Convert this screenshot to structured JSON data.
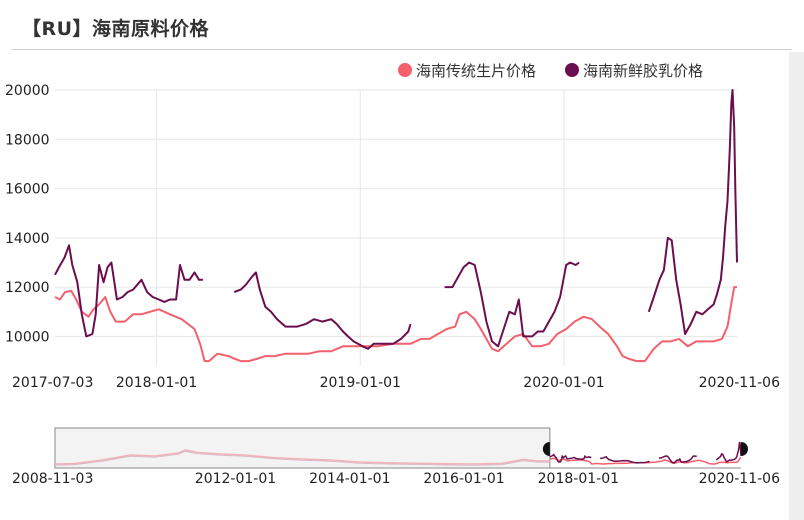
{
  "title": "【RU】海南原料价格",
  "colors": {
    "series_traditional": "#f4606c",
    "series_latex": "#6b0e4f",
    "grid": "#e6e6e6",
    "navigator_border": "#888888",
    "navigator_handle": "#111111"
  },
  "chart_data": {
    "type": "line",
    "xaxis_type": "date",
    "xlim": [
      "2017-07-03",
      "2020-11-06"
    ],
    "ylim": [
      8800,
      20000
    ],
    "y_ticks": [
      10000,
      12000,
      14000,
      16000,
      18000,
      20000
    ],
    "x_tick_labels": [
      "2017-07-03",
      "2018-01-01",
      "2019-01-01",
      "2020-01-01",
      "2020-11-06"
    ],
    "grid": true,
    "legend_position": "top-right",
    "series": [
      {
        "name": "海南传统生片价格",
        "color": "#f4606c",
        "points": [
          [
            "2017-07-03",
            11600
          ],
          [
            "2017-07-12",
            11500
          ],
          [
            "2017-07-21",
            11800
          ],
          [
            "2017-08-01",
            11850
          ],
          [
            "2017-08-10",
            11500
          ],
          [
            "2017-08-20",
            11000
          ],
          [
            "2017-09-01",
            10800
          ],
          [
            "2017-09-10",
            11100
          ],
          [
            "2017-09-20",
            11300
          ],
          [
            "2017-10-01",
            11600
          ],
          [
            "2017-10-10",
            11000
          ],
          [
            "2017-10-20",
            10600
          ],
          [
            "2017-11-05",
            10600
          ],
          [
            "2017-11-20",
            10900
          ],
          [
            "2017-12-05",
            10900
          ],
          [
            "2017-12-20",
            11000
          ],
          [
            "2018-01-05",
            11100
          ],
          [
            "2018-01-25",
            10900
          ],
          [
            "2018-02-15",
            10700
          ],
          [
            "2018-03-10",
            10300
          ],
          [
            "2018-03-20",
            9700
          ],
          [
            "2018-03-28",
            9000
          ],
          [
            "2018-04-05",
            9000
          ],
          [
            "2018-04-20",
            9300
          ],
          [
            "2018-05-10",
            9200
          ],
          [
            "2018-05-20",
            9100
          ],
          [
            "2018-06-01",
            9000
          ],
          [
            "2018-06-15",
            9000
          ],
          [
            "2018-07-01",
            9100
          ],
          [
            "2018-07-15",
            9200
          ],
          [
            "2018-08-01",
            9200
          ],
          [
            "2018-08-20",
            9300
          ],
          [
            "2018-09-10",
            9300
          ],
          [
            "2018-10-01",
            9300
          ],
          [
            "2018-10-20",
            9400
          ],
          [
            "2018-11-10",
            9400
          ],
          [
            "2018-12-01",
            9600
          ],
          [
            "2018-12-20",
            9600
          ],
          [
            "2019-01-10",
            9600
          ],
          [
            "2019-02-01",
            9600
          ],
          [
            "2019-03-01",
            9700
          ],
          [
            "2019-04-01",
            9700
          ],
          [
            "2019-04-20",
            9900
          ],
          [
            "2019-05-05",
            9900
          ],
          [
            "2019-05-20",
            10100
          ],
          [
            "2019-06-05",
            10300
          ],
          [
            "2019-06-20",
            10400
          ],
          [
            "2019-06-28",
            10900
          ],
          [
            "2019-07-10",
            11000
          ],
          [
            "2019-07-25",
            10700
          ],
          [
            "2019-08-05",
            10300
          ],
          [
            "2019-08-15",
            9900
          ],
          [
            "2019-08-25",
            9500
          ],
          [
            "2019-09-05",
            9400
          ],
          [
            "2019-09-20",
            9700
          ],
          [
            "2019-10-05",
            10000
          ],
          [
            "2019-10-20",
            10100
          ],
          [
            "2019-11-05",
            9600
          ],
          [
            "2019-11-20",
            9600
          ],
          [
            "2019-12-05",
            9700
          ],
          [
            "2019-12-20",
            10100
          ],
          [
            "2020-01-05",
            10300
          ],
          [
            "2020-01-20",
            10600
          ],
          [
            "2020-02-05",
            10800
          ],
          [
            "2020-02-20",
            10700
          ],
          [
            "2020-03-05",
            10400
          ],
          [
            "2020-03-20",
            10100
          ],
          [
            "2020-04-05",
            9600
          ],
          [
            "2020-04-15",
            9200
          ],
          [
            "2020-04-25",
            9100
          ],
          [
            "2020-05-10",
            9000
          ],
          [
            "2020-05-25",
            9000
          ],
          [
            "2020-06-10",
            9500
          ],
          [
            "2020-06-25",
            9800
          ],
          [
            "2020-07-10",
            9800
          ],
          [
            "2020-07-25",
            9900
          ],
          [
            "2020-08-10",
            9600
          ],
          [
            "2020-08-25",
            9800
          ],
          [
            "2020-09-10",
            9800
          ],
          [
            "2020-09-25",
            9800
          ],
          [
            "2020-10-10",
            9900
          ],
          [
            "2020-10-20",
            10400
          ],
          [
            "2020-10-28",
            11500
          ],
          [
            "2020-11-01",
            12000
          ],
          [
            "2020-11-06",
            12000
          ]
        ]
      },
      {
        "name": "海南新鲜胶乳价格",
        "color": "#6b0e4f",
        "points": [
          [
            "2017-07-03",
            12500
          ],
          [
            "2017-07-10",
            12800
          ],
          [
            "2017-07-20",
            13200
          ],
          [
            "2017-07-28",
            13700
          ],
          [
            "2017-08-03",
            12900
          ],
          [
            "2017-08-12",
            12200
          ],
          [
            "2017-08-20",
            10900
          ],
          [
            "2017-08-28",
            10000
          ],
          [
            "2017-09-08",
            10100
          ],
          [
            "2017-09-14",
            10900
          ],
          [
            "2017-09-20",
            12900
          ],
          [
            "2017-09-28",
            12200
          ],
          [
            "2017-10-05",
            12800
          ],
          [
            "2017-10-12",
            13000
          ],
          [
            "2017-10-22",
            11500
          ],
          [
            "2017-11-01",
            11600
          ],
          [
            "2017-11-10",
            11800
          ],
          [
            "2017-11-20",
            11900
          ],
          [
            "2017-12-05",
            12300
          ],
          [
            "2017-12-15",
            11800
          ],
          [
            "2017-12-25",
            11600
          ],
          [
            "2018-01-05",
            11500
          ],
          [
            "2018-01-15",
            11400
          ],
          [
            "2018-01-25",
            11500
          ],
          [
            "2018-02-05",
            11500
          ],
          [
            "2018-02-12",
            12900
          ],
          [
            "2018-02-20",
            12300
          ],
          [
            "2018-03-01",
            12300
          ],
          [
            "2018-03-10",
            12600
          ],
          [
            "2018-03-18",
            12300
          ],
          [
            "2018-03-25",
            12300
          ],
          null,
          [
            "2018-05-20",
            11800
          ],
          [
            "2018-06-01",
            11900
          ],
          [
            "2018-06-10",
            12100
          ],
          [
            "2018-06-20",
            12400
          ],
          [
            "2018-06-28",
            12600
          ],
          [
            "2018-07-05",
            11900
          ],
          [
            "2018-07-15",
            11200
          ],
          [
            "2018-07-25",
            11000
          ],
          [
            "2018-08-05",
            10700
          ],
          [
            "2018-08-20",
            10400
          ],
          [
            "2018-09-10",
            10400
          ],
          [
            "2018-09-25",
            10500
          ],
          [
            "2018-10-10",
            10700
          ],
          [
            "2018-10-25",
            10600
          ],
          [
            "2018-11-10",
            10700
          ],
          [
            "2018-11-20",
            10500
          ],
          [
            "2018-12-01",
            10200
          ],
          [
            "2018-12-10",
            10000
          ],
          [
            "2018-12-20",
            9800
          ],
          [
            "2019-01-05",
            9600
          ],
          [
            "2019-01-15",
            9500
          ],
          [
            "2019-01-25",
            9700
          ],
          [
            "2019-02-10",
            9700
          ],
          [
            "2019-03-01",
            9700
          ],
          [
            "2019-03-15",
            9900
          ],
          [
            "2019-03-28",
            10200
          ],
          [
            "2019-04-01",
            10500
          ],
          null,
          [
            "2019-06-01",
            12000
          ],
          [
            "2019-06-15",
            12000
          ],
          [
            "2019-07-05",
            12800
          ],
          [
            "2019-07-15",
            13000
          ],
          [
            "2019-07-25",
            12900
          ],
          [
            "2019-08-05",
            11800
          ],
          [
            "2019-08-15",
            10600
          ],
          [
            "2019-08-25",
            9800
          ],
          [
            "2019-09-05",
            9600
          ],
          [
            "2019-09-15",
            10300
          ],
          [
            "2019-09-25",
            11000
          ],
          [
            "2019-10-05",
            10900
          ],
          [
            "2019-10-12",
            11500
          ],
          [
            "2019-10-20",
            10000
          ],
          [
            "2019-11-05",
            10000
          ],
          [
            "2019-11-15",
            10200
          ],
          [
            "2019-11-25",
            10200
          ],
          [
            "2019-12-05",
            10600
          ],
          [
            "2019-12-15",
            11000
          ],
          [
            "2019-12-25",
            11600
          ],
          [
            "2020-01-05",
            12900
          ],
          [
            "2020-01-12",
            13000
          ],
          [
            "2020-01-22",
            12900
          ],
          [
            "2020-01-28",
            13000
          ],
          null,
          [
            "2020-06-01",
            11000
          ],
          [
            "2020-06-10",
            11600
          ],
          [
            "2020-06-20",
            12300
          ],
          [
            "2020-06-28",
            12700
          ],
          [
            "2020-07-05",
            14000
          ],
          [
            "2020-07-12",
            13900
          ],
          [
            "2020-07-20",
            12300
          ],
          [
            "2020-07-28",
            11300
          ],
          [
            "2020-08-05",
            10100
          ],
          [
            "2020-08-15",
            10500
          ],
          [
            "2020-08-25",
            11000
          ],
          [
            "2020-09-05",
            10900
          ],
          [
            "2020-09-15",
            11100
          ],
          [
            "2020-09-25",
            11300
          ],
          [
            "2020-10-01",
            11700
          ],
          [
            "2020-10-08",
            12300
          ],
          [
            "2020-10-12",
            13200
          ],
          [
            "2020-10-16",
            14500
          ],
          [
            "2020-10-20",
            15500
          ],
          [
            "2020-10-24",
            17500
          ],
          [
            "2020-10-27",
            19500
          ],
          [
            "2020-10-29",
            20000
          ],
          [
            "2020-11-01",
            18500
          ],
          [
            "2020-11-03",
            16000
          ],
          [
            "2020-11-06",
            13000
          ]
        ]
      }
    ],
    "navigator": {
      "x_tick_labels": [
        "2008-11-03",
        "2012-01-01",
        "2014-01-01",
        "2016-01-01",
        "2018-01-01",
        "2020-11-06"
      ],
      "selected_range": [
        "2017-07-03",
        "2020-11-06"
      ]
    }
  }
}
